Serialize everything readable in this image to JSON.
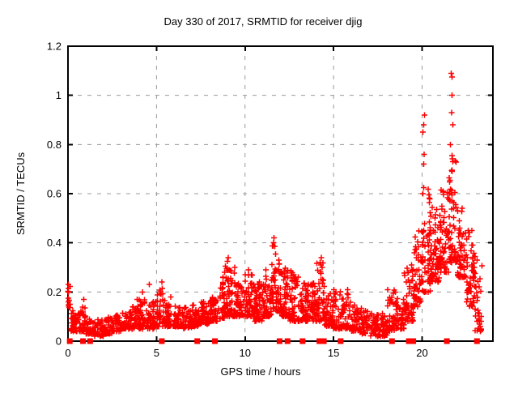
{
  "window": {
    "background": "#ffffff"
  },
  "chart_data": {
    "type": "scatter",
    "title": "Day 330 of 2017, SRMTID for receiver djig",
    "xlabel": "GPS time / hours",
    "ylabel": "SRMTID / TECUs",
    "xlim": [
      0,
      24
    ],
    "ylim": [
      0,
      1.2
    ],
    "xticks": {
      "values": [
        0,
        5,
        10,
        15,
        20
      ],
      "labels": [
        "0",
        "5",
        "10",
        "15",
        "20"
      ]
    },
    "yticks": {
      "values": [
        0,
        0.2,
        0.4,
        0.6,
        0.8,
        1,
        1.2
      ],
      "labels": [
        "0",
        "0.2",
        "0.4",
        "0.6",
        "0.8",
        "1",
        "1.2"
      ]
    },
    "grid": {
      "visible": true,
      "style": "dashed",
      "at": "major-ticks"
    },
    "legend": "none",
    "marker": {
      "shape": "plus",
      "size": 7,
      "color": "#ff0000"
    },
    "zero_line_marker": {
      "shape": "filled-square",
      "size": 7,
      "color": "#ff0000"
    },
    "zero_line_marker_hours": [
      0.1,
      0.85,
      1.25,
      5.3,
      7.3,
      8.3,
      11.95,
      12.4,
      13.25,
      14.2,
      14.45,
      15.4,
      18.3,
      19.25,
      19.5,
      21.4,
      23.1
    ],
    "band_format": [
      "t_start_hours",
      "t_end_hours",
      "point_count",
      "y_min_tecus",
      "y_max_tecus"
    ],
    "scatter_bands": [
      [
        0.0,
        0.15,
        8,
        0.13,
        0.235
      ],
      [
        0.15,
        0.5,
        34,
        0.04,
        0.14
      ],
      [
        0.5,
        1.0,
        40,
        0.04,
        0.14
      ],
      [
        1.0,
        1.5,
        38,
        0.03,
        0.1
      ],
      [
        1.5,
        2.0,
        34,
        0.02,
        0.09
      ],
      [
        2.0,
        2.5,
        38,
        0.03,
        0.1
      ],
      [
        2.5,
        3.0,
        40,
        0.04,
        0.11
      ],
      [
        3.0,
        3.5,
        42,
        0.05,
        0.12
      ],
      [
        3.5,
        4.0,
        42,
        0.05,
        0.15
      ],
      [
        4.0,
        4.5,
        42,
        0.05,
        0.17
      ],
      [
        4.5,
        5.0,
        42,
        0.05,
        0.16
      ],
      [
        5.0,
        5.5,
        44,
        0.06,
        0.21
      ],
      [
        5.5,
        6.0,
        42,
        0.06,
        0.17
      ],
      [
        6.0,
        6.5,
        42,
        0.06,
        0.15
      ],
      [
        6.5,
        7.0,
        42,
        0.05,
        0.14
      ],
      [
        7.0,
        7.5,
        44,
        0.06,
        0.15
      ],
      [
        7.5,
        8.0,
        44,
        0.07,
        0.16
      ],
      [
        8.0,
        8.5,
        46,
        0.08,
        0.18
      ],
      [
        8.5,
        9.0,
        50,
        0.09,
        0.27
      ],
      [
        9.0,
        9.5,
        50,
        0.1,
        0.33
      ],
      [
        9.5,
        10.0,
        50,
        0.1,
        0.26
      ],
      [
        10.0,
        10.5,
        52,
        0.1,
        0.28
      ],
      [
        10.5,
        11.0,
        50,
        0.08,
        0.24
      ],
      [
        11.0,
        11.5,
        52,
        0.1,
        0.31
      ],
      [
        11.5,
        12.0,
        55,
        0.12,
        0.4
      ],
      [
        12.0,
        12.5,
        52,
        0.1,
        0.3
      ],
      [
        12.5,
        13.0,
        50,
        0.08,
        0.28
      ],
      [
        13.0,
        13.5,
        48,
        0.08,
        0.24
      ],
      [
        13.5,
        14.0,
        48,
        0.08,
        0.25
      ],
      [
        14.0,
        14.5,
        50,
        0.08,
        0.32
      ],
      [
        14.5,
        15.0,
        45,
        0.06,
        0.2
      ],
      [
        15.0,
        15.5,
        45,
        0.05,
        0.21
      ],
      [
        15.5,
        16.0,
        42,
        0.05,
        0.2
      ],
      [
        16.0,
        16.5,
        40,
        0.04,
        0.16
      ],
      [
        16.5,
        17.0,
        40,
        0.03,
        0.14
      ],
      [
        17.0,
        17.5,
        38,
        0.02,
        0.12
      ],
      [
        17.5,
        18.0,
        38,
        0.02,
        0.12
      ],
      [
        18.0,
        18.5,
        42,
        0.04,
        0.21
      ],
      [
        18.5,
        19.0,
        42,
        0.05,
        0.18
      ],
      [
        19.0,
        19.5,
        48,
        0.08,
        0.3
      ],
      [
        19.5,
        20.0,
        52,
        0.14,
        0.46
      ],
      [
        20.0,
        20.5,
        55,
        0.2,
        0.62
      ],
      [
        20.5,
        21.0,
        58,
        0.24,
        0.55
      ],
      [
        21.0,
        21.5,
        58,
        0.28,
        0.62
      ],
      [
        21.5,
        22.0,
        58,
        0.32,
        0.76
      ],
      [
        22.0,
        22.5,
        55,
        0.26,
        0.55
      ],
      [
        22.5,
        23.0,
        52,
        0.14,
        0.46
      ],
      [
        23.0,
        23.4,
        28,
        0.04,
        0.35
      ]
    ],
    "notable_points": [
      [
        0.02,
        0.23
      ],
      [
        0.02,
        0.215
      ],
      [
        0.03,
        0.2
      ],
      [
        0.02,
        0.175
      ],
      [
        0.03,
        0.16
      ],
      [
        0.04,
        0.15
      ],
      [
        0.9,
        0.17
      ],
      [
        3.9,
        0.17
      ],
      [
        4.2,
        0.2
      ],
      [
        4.6,
        0.23
      ],
      [
        5.3,
        0.24
      ],
      [
        5.33,
        0.215
      ],
      [
        5.8,
        0.18
      ],
      [
        8.85,
        0.28
      ],
      [
        8.9,
        0.305
      ],
      [
        8.95,
        0.295
      ],
      [
        9.0,
        0.325
      ],
      [
        9.05,
        0.34
      ],
      [
        9.1,
        0.29
      ],
      [
        10.2,
        0.29
      ],
      [
        10.35,
        0.27
      ],
      [
        11.6,
        0.4
      ],
      [
        11.63,
        0.42
      ],
      [
        11.68,
        0.385
      ],
      [
        11.73,
        0.355
      ],
      [
        11.9,
        0.33
      ],
      [
        12.6,
        0.285
      ],
      [
        13.0,
        0.26
      ],
      [
        14.25,
        0.32
      ],
      [
        14.3,
        0.34
      ],
      [
        14.35,
        0.3
      ],
      [
        15.8,
        0.21
      ],
      [
        19.4,
        0.31
      ],
      [
        19.45,
        0.285
      ],
      [
        20.05,
        0.6
      ],
      [
        20.08,
        0.625
      ],
      [
        20.1,
        0.72
      ],
      [
        20.12,
        0.76
      ],
      [
        20.05,
        0.85
      ],
      [
        20.1,
        0.88
      ],
      [
        20.14,
        0.92
      ],
      [
        21.65,
        1.09
      ],
      [
        21.7,
        1.075
      ],
      [
        21.68,
        1.0
      ],
      [
        21.66,
        0.93
      ],
      [
        21.74,
        0.88
      ],
      [
        21.6,
        0.8
      ],
      [
        21.7,
        0.755
      ],
      [
        21.74,
        0.73
      ],
      [
        21.7,
        0.69
      ],
      [
        21.69,
        0.695
      ],
      [
        21.58,
        0.655
      ],
      [
        22.6,
        0.45
      ],
      [
        22.63,
        0.425
      ],
      [
        22.95,
        0.3
      ],
      [
        23.0,
        0.275
      ],
      [
        23.05,
        0.22
      ],
      [
        23.1,
        0.165
      ],
      [
        23.15,
        0.125
      ],
      [
        23.2,
        0.085
      ],
      [
        23.28,
        0.06
      ]
    ],
    "colors": {
      "points": "#ff0000",
      "grid": "#999999",
      "border": "#000000",
      "background": "#ffffff",
      "text": "#000000"
    }
  }
}
